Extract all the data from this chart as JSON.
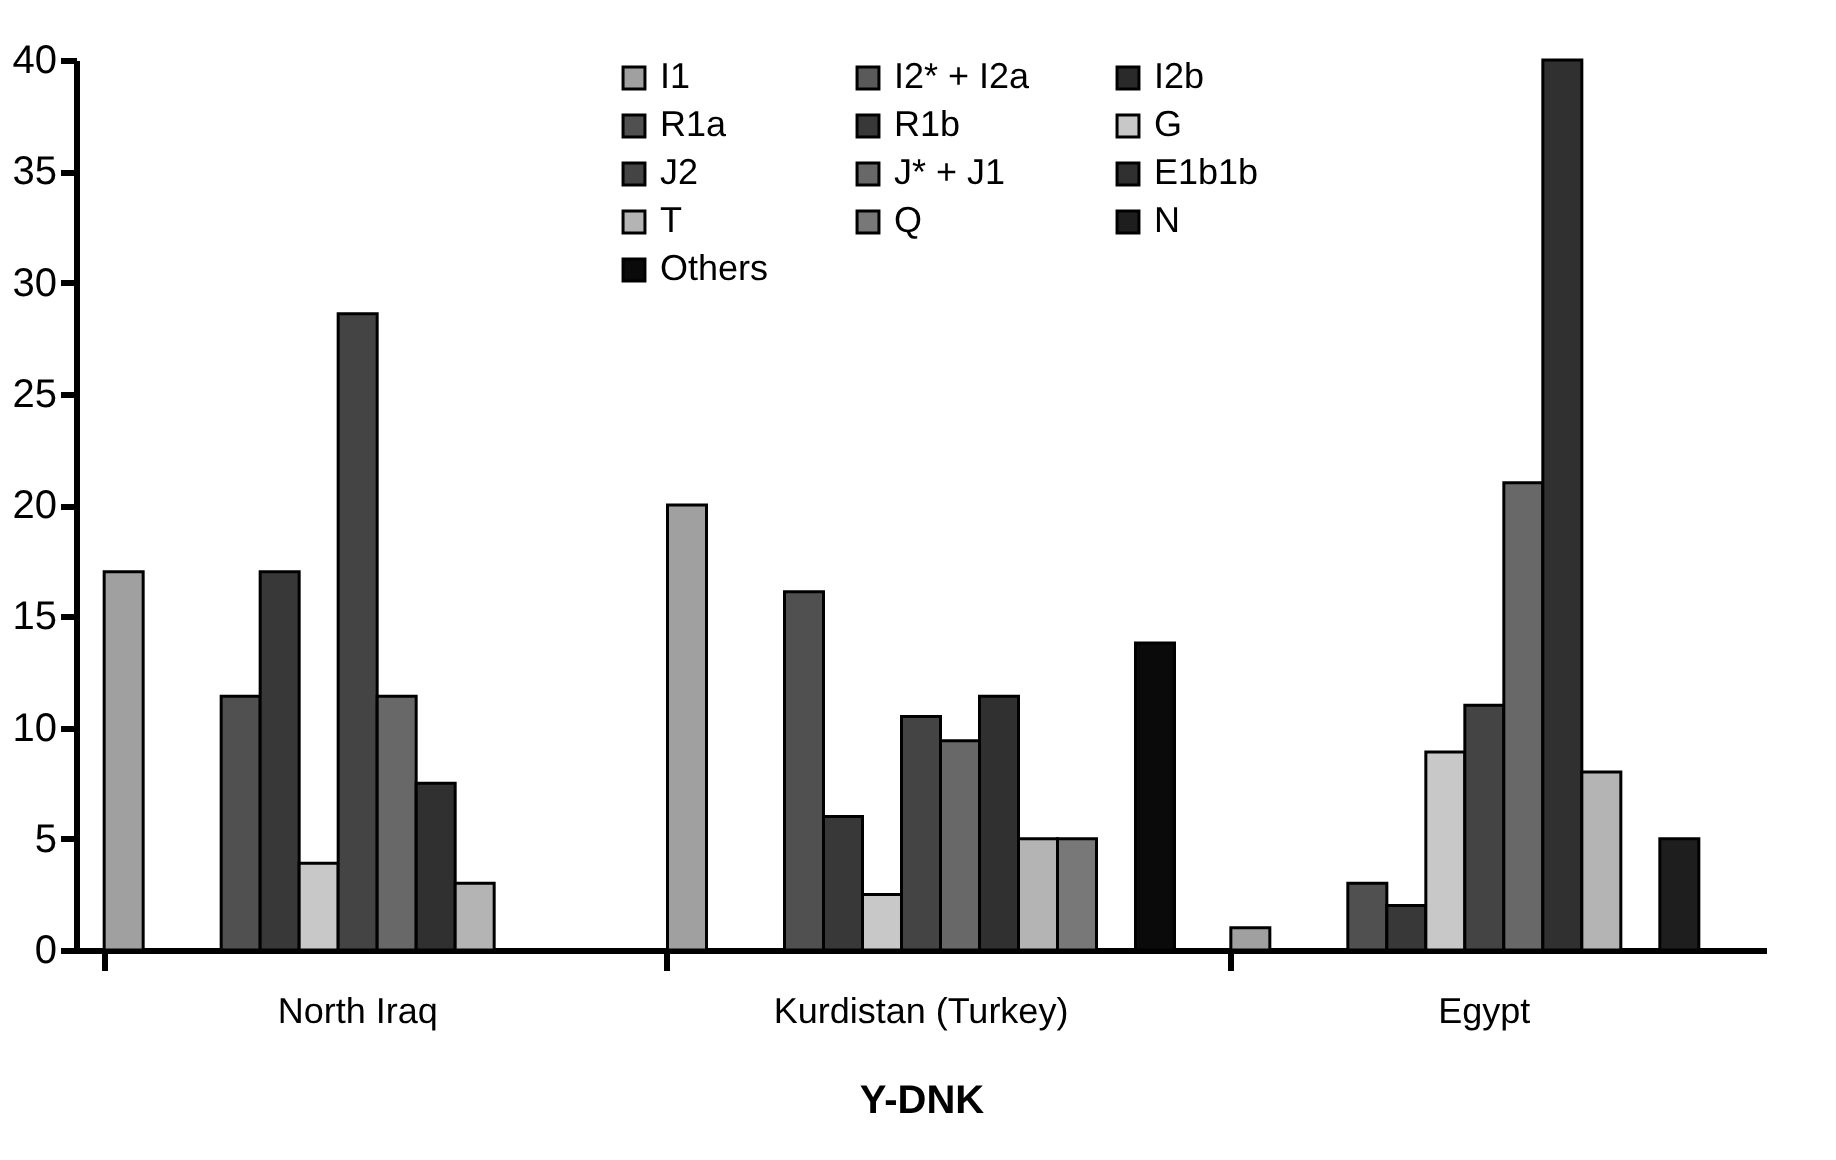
{
  "chart_data": {
    "type": "bar",
    "xlabel": "Y-DNK",
    "categories": [
      "North Iraq",
      "Kurdistan (Turkey)",
      "Egypt"
    ],
    "ylim": [
      0,
      40
    ],
    "yticks": [
      0,
      5,
      10,
      15,
      20,
      25,
      30,
      35,
      40
    ],
    "grid": false,
    "legend": "top",
    "series": [
      {
        "name": "I1",
        "color": "#a0a0a0",
        "values": [
          17,
          20,
          1
        ]
      },
      {
        "name": "I2* + I2a",
        "color": "#5a5a5a",
        "values": [
          null,
          null,
          null
        ]
      },
      {
        "name": "I2b",
        "color": "#2a2a2a",
        "values": [
          null,
          null,
          null
        ]
      },
      {
        "name": "R1a",
        "color": "#505050",
        "values": [
          11.4,
          16.1,
          3
        ]
      },
      {
        "name": "R1b",
        "color": "#383838",
        "values": [
          17,
          6,
          2
        ]
      },
      {
        "name": "G",
        "color": "#c8c8c8",
        "values": [
          3.9,
          2.5,
          8.9
        ]
      },
      {
        "name": "J2",
        "color": "#444444",
        "values": [
          28.6,
          10.5,
          11
        ]
      },
      {
        "name": "J* + J1",
        "color": "#686868",
        "values": [
          11.4,
          9.4,
          21
        ]
      },
      {
        "name": "E1b1b",
        "color": "#303030",
        "values": [
          7.5,
          11.4,
          40
        ]
      },
      {
        "name": "T",
        "color": "#b4b4b4",
        "values": [
          3,
          5,
          8
        ]
      },
      {
        "name": "Q",
        "color": "#787878",
        "values": [
          null,
          5,
          null
        ]
      },
      {
        "name": "N",
        "color": "#1e1e1e",
        "values": [
          null,
          null,
          5
        ]
      },
      {
        "name": "Others",
        "color": "#0a0a0a",
        "values": [
          null,
          13.8,
          null
        ]
      }
    ]
  }
}
